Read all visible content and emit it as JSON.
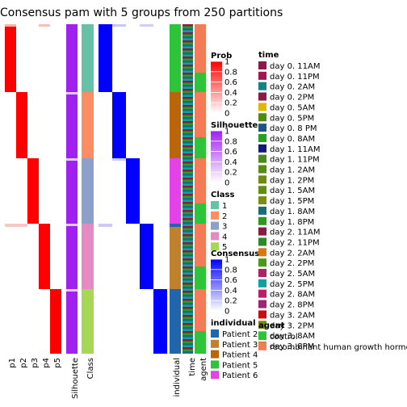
{
  "title": "Consensus pam with 5 groups from 250 partitions",
  "chart_data": {
    "type": "heatmap",
    "columns": [
      "p1",
      "p2",
      "p3",
      "p4",
      "p5",
      "Silhouette",
      "Class",
      "Consensus",
      "individual",
      "time",
      "agent"
    ],
    "groups": [
      {
        "class": 1,
        "individual": [
          "Patient 5",
          "Patient 4"
        ],
        "agent": [
          "control",
          "recombinant human growth hormone"
        ]
      },
      {
        "class": 2,
        "individual": [
          "Patient 4"
        ],
        "agent": [
          "recombinant human growth hormone",
          "control"
        ]
      },
      {
        "class": 3,
        "individual": [
          "Patient 6"
        ],
        "agent": [
          "recombinant human growth hormone",
          "control"
        ]
      },
      {
        "class": 4,
        "individual": [
          "Patient 3"
        ],
        "agent": [
          "recombinant human growth hormone",
          "control"
        ]
      },
      {
        "class": 5,
        "individual": [
          "Patient 2"
        ],
        "agent": [
          "recombinant human growth hormone",
          "control"
        ]
      }
    ],
    "legends": {
      "prob": {
        "title": "Prob",
        "ticks": [
          "1",
          "0.8",
          "0.6",
          "0.4",
          "0.2",
          "0"
        ],
        "low": "#ffffff",
        "high": "#ff0000"
      },
      "silhouette": {
        "title": "Silhouette",
        "ticks": [
          "1",
          "0.8",
          "0.6",
          "0.4",
          "0.2",
          "0"
        ],
        "low": "#ffffff",
        "high": "#a020f0"
      },
      "class": {
        "title": "Class",
        "items": [
          {
            "label": "1",
            "color": "#66c2a5"
          },
          {
            "label": "2",
            "color": "#fc8d62"
          },
          {
            "label": "3",
            "color": "#8da0cb"
          },
          {
            "label": "4",
            "color": "#e78ac3"
          },
          {
            "label": "5",
            "color": "#a6d854"
          }
        ]
      },
      "consensus": {
        "title": "Consensus",
        "ticks": [
          "1",
          "0.8",
          "0.6",
          "0.4",
          "0.2",
          "0"
        ],
        "low": "#ffffff",
        "high": "#0000ff"
      },
      "individual": {
        "title": "individual",
        "items": [
          {
            "label": "Patient 2",
            "color": "#2166ac"
          },
          {
            "label": "Patient 3",
            "color": "#bf812d"
          },
          {
            "label": "Patient 4",
            "color": "#b8650b"
          },
          {
            "label": "Patient 5",
            "color": "#2ec43a"
          },
          {
            "label": "Patient 6",
            "color": "#e442e8"
          }
        ]
      },
      "time": {
        "title": "time",
        "items": [
          {
            "label": "day 0. 11AM",
            "color": "#8b1a4a"
          },
          {
            "label": "day 0. 11PM",
            "color": "#a0164f"
          },
          {
            "label": "day 0. 2AM",
            "color": "#14808a"
          },
          {
            "label": "day 0. 2PM",
            "color": "#8b1a4a"
          },
          {
            "label": "day 0. 5AM",
            "color": "#e0b800"
          },
          {
            "label": "day 0. 5PM",
            "color": "#4f8a12"
          },
          {
            "label": "day 0. 8 PM",
            "color": "#1f5580"
          },
          {
            "label": "day 0. 8AM",
            "color": "#23a21f"
          },
          {
            "label": "day 1. 11AM",
            "color": "#101a78"
          },
          {
            "label": "day 1. 11PM",
            "color": "#4a8a1a"
          },
          {
            "label": "day 1. 2AM",
            "color": "#5a8a14"
          },
          {
            "label": "day 1. 2PM",
            "color": "#6e8a10"
          },
          {
            "label": "day 1. 5AM",
            "color": "#5e9012"
          },
          {
            "label": "day 1. 5PM",
            "color": "#7a8e10"
          },
          {
            "label": "day 1. 8AM",
            "color": "#1a6a7a"
          },
          {
            "label": "day 1. 8PM",
            "color": "#2e9a1c"
          },
          {
            "label": "day 2. 11AM",
            "color": "#8a1a40"
          },
          {
            "label": "day 2. 11PM",
            "color": "#2a8a2a"
          },
          {
            "label": "day 2. 2AM",
            "color": "#d67a10"
          },
          {
            "label": "day 2. 2PM",
            "color": "#4a9a1a"
          },
          {
            "label": "day 2. 5AM",
            "color": "#b0206a"
          },
          {
            "label": "day 2. 5PM",
            "color": "#10a0a0"
          },
          {
            "label": "day 2. 8AM",
            "color": "#c01a6a"
          },
          {
            "label": "day 2. 8PM",
            "color": "#a0227a"
          },
          {
            "label": "day 3. 2AM",
            "color": "#c01010"
          },
          {
            "label": "day 3. 2PM",
            "color": "#7a8a10"
          },
          {
            "label": "day 3. 8AM",
            "color": "#e0b000"
          },
          {
            "label": "day 3. 8PM",
            "color": "#8a9a10"
          }
        ]
      },
      "agent": {
        "title": "agent",
        "items": [
          {
            "label": "control",
            "color": "#2ec43a"
          },
          {
            "label": "recombinant human growth hormone",
            "color": "#f47b55"
          }
        ]
      }
    }
  }
}
